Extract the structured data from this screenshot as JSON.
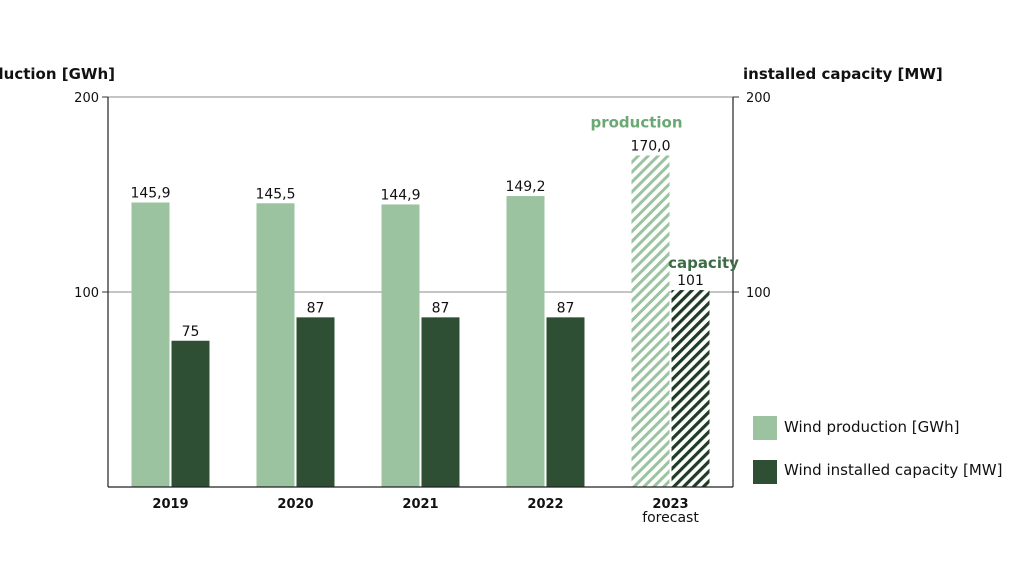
{
  "chart_data": {
    "type": "bar",
    "left_axis_title": "production [GWh]",
    "right_axis_title": "installed capacity [MW]",
    "ylim": [
      0,
      200
    ],
    "y_ticks": [
      100,
      200
    ],
    "grid": true,
    "legend_position": "bottom-right",
    "categories": [
      {
        "label": "2019",
        "sub": ""
      },
      {
        "label": "2020",
        "sub": ""
      },
      {
        "label": "2021",
        "sub": ""
      },
      {
        "label": "2022",
        "sub": ""
      },
      {
        "label": "2023",
        "sub": "forecast"
      }
    ],
    "series": [
      {
        "name": "Wind production [GWh]",
        "color": "#9bc3a0",
        "values": [
          145.9,
          145.5,
          144.9,
          149.2,
          170.0
        ],
        "value_labels": [
          "145,9",
          "145,5",
          "144,9",
          "149,2",
          "170,0"
        ]
      },
      {
        "name": "Wind installed capacity [MW]",
        "color": "#2f4f34",
        "values": [
          75,
          87,
          87,
          87,
          101
        ],
        "value_labels": [
          "75",
          "87",
          "87",
          "87",
          "101"
        ]
      }
    ],
    "forecast_category_index": 4,
    "annotations": {
      "production": {
        "text": "production",
        "color": "#6aa874"
      },
      "capacity": {
        "text": "capacity",
        "color": "#3d6b45"
      }
    }
  }
}
